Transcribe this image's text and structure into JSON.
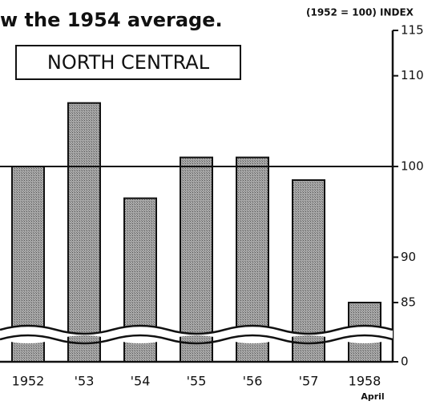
{
  "chart_data": {
    "type": "bar",
    "title": "w the 1954 average.",
    "subtitle": "NORTH CENTRAL",
    "y_label": "(1952 = 100) INDEX",
    "annotation": "April",
    "categories": [
      "1952",
      "'53",
      "'54",
      "'55",
      "'56",
      "'57",
      "1958"
    ],
    "values": [
      100,
      107,
      96.5,
      101,
      101,
      98.5,
      85
    ],
    "color": "#9a9a9a",
    "ylim": [
      0,
      115
    ],
    "yticks": [
      0,
      85,
      90,
      100,
      110,
      115
    ],
    "axis_break": true,
    "reference_line": 100,
    "grid": false
  }
}
